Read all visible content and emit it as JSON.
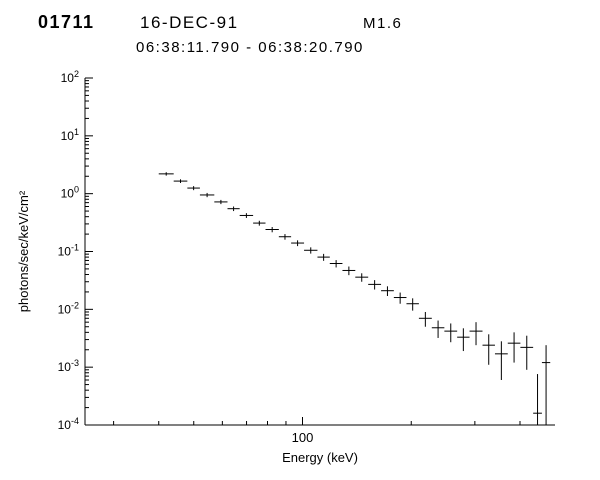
{
  "header": {
    "burst_id": "01711",
    "date": "16-DEC-91",
    "flare_class": "M1.6",
    "time_range": "06:38:11.790 - 06:38:20.790"
  },
  "chart_data": {
    "type": "scatter",
    "title": "01711 16-DEC-91 M1.6 06:38:11.790 - 06:38:20.790",
    "xlabel": "Energy (keV)",
    "ylabel": "photons/sec/keV/cm²",
    "xscale": "log",
    "yscale": "log",
    "xlim": [
      25,
      500
    ],
    "ylim": [
      0.0001,
      100
    ],
    "grid": false,
    "legend": "none",
    "x_major_ticks": [
      100
    ],
    "x_tick_labels": [
      "100"
    ],
    "y_tick_exponents": [
      2,
      1,
      0,
      -1,
      -2,
      -3,
      -4
    ],
    "marker": "error-bar-cross",
    "points": [
      {
        "e_lo": 40,
        "e_hi": 44,
        "flux": 2.2,
        "err": 0.15
      },
      {
        "e_lo": 44,
        "e_hi": 48,
        "flux": 1.65,
        "err": 0.12
      },
      {
        "e_lo": 48,
        "e_hi": 52,
        "flux": 1.25,
        "err": 0.1
      },
      {
        "e_lo": 52,
        "e_hi": 57,
        "flux": 0.95,
        "err": 0.08
      },
      {
        "e_lo": 57,
        "e_hi": 62,
        "flux": 0.72,
        "err": 0.06
      },
      {
        "e_lo": 62,
        "e_hi": 67,
        "flux": 0.55,
        "err": 0.05
      },
      {
        "e_lo": 67,
        "e_hi": 73,
        "flux": 0.42,
        "err": 0.04
      },
      {
        "e_lo": 73,
        "e_hi": 79,
        "flux": 0.31,
        "err": 0.03
      },
      {
        "e_lo": 79,
        "e_hi": 86,
        "flux": 0.24,
        "err": 0.025
      },
      {
        "e_lo": 86,
        "e_hi": 93,
        "flux": 0.18,
        "err": 0.02
      },
      {
        "e_lo": 93,
        "e_hi": 101,
        "flux": 0.14,
        "err": 0.016
      },
      {
        "e_lo": 101,
        "e_hi": 110,
        "flux": 0.105,
        "err": 0.013
      },
      {
        "e_lo": 110,
        "e_hi": 119,
        "flux": 0.08,
        "err": 0.011
      },
      {
        "e_lo": 119,
        "e_hi": 129,
        "flux": 0.062,
        "err": 0.009
      },
      {
        "e_lo": 129,
        "e_hi": 140,
        "flux": 0.047,
        "err": 0.008
      },
      {
        "e_lo": 140,
        "e_hi": 152,
        "flux": 0.036,
        "err": 0.006
      },
      {
        "e_lo": 152,
        "e_hi": 165,
        "flux": 0.027,
        "err": 0.005
      },
      {
        "e_lo": 165,
        "e_hi": 179,
        "flux": 0.021,
        "err": 0.004
      },
      {
        "e_lo": 179,
        "e_hi": 194,
        "flux": 0.016,
        "err": 0.0035
      },
      {
        "e_lo": 194,
        "e_hi": 210,
        "flux": 0.0125,
        "err": 0.003
      },
      {
        "e_lo": 210,
        "e_hi": 228,
        "flux": 0.007,
        "err": 0.002
      },
      {
        "e_lo": 228,
        "e_hi": 247,
        "flux": 0.0048,
        "err": 0.0016
      },
      {
        "e_lo": 247,
        "e_hi": 268,
        "flux": 0.0042,
        "err": 0.0015
      },
      {
        "e_lo": 268,
        "e_hi": 290,
        "flux": 0.0033,
        "err": 0.0014
      },
      {
        "e_lo": 290,
        "e_hi": 315,
        "flux": 0.0042,
        "err": 0.0018
      },
      {
        "e_lo": 315,
        "e_hi": 341,
        "flux": 0.0024,
        "err": 0.0013
      },
      {
        "e_lo": 341,
        "e_hi": 370,
        "flux": 0.0017,
        "err": 0.0011
      },
      {
        "e_lo": 370,
        "e_hi": 401,
        "flux": 0.0026,
        "err": 0.0014
      },
      {
        "e_lo": 401,
        "e_hi": 435,
        "flux": 0.0022,
        "err": 0.0013
      },
      {
        "e_lo": 435,
        "e_hi": 460,
        "flux": 0.00016,
        "err": 0.0006
      },
      {
        "e_lo": 460,
        "e_hi": 485,
        "flux": 0.0012,
        "err": 0.0012
      }
    ]
  }
}
